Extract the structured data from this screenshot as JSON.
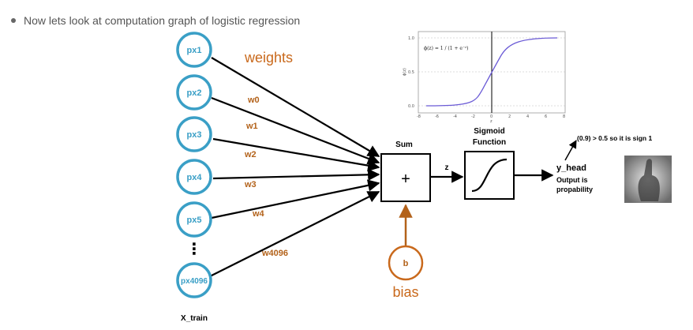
{
  "intro_text": "Now lets look at computation graph of logistic regression",
  "inputs": [
    {
      "label": "px1",
      "weight": ""
    },
    {
      "label": "px2",
      "weight": "w0"
    },
    {
      "label": "px3",
      "weight": "w1"
    },
    {
      "label": "px4",
      "weight": "w2"
    },
    {
      "label": "px5",
      "weight": "w3"
    },
    {
      "label": "px4096",
      "weight": "w4"
    }
  ],
  "last_weight": "w4096",
  "ellipsis": "⋮",
  "weights_title": "weights",
  "x_train_label": "X_train",
  "sum_label": "Sum",
  "plus_sign": "+",
  "z_label": "z",
  "sigmoid_label_1": "Sigmoid",
  "sigmoid_label_2": "Function",
  "bias_node": "b",
  "bias_label": "bias",
  "y_head_label": "y_head",
  "output_line_1": "Output is",
  "output_line_2": "propability",
  "decision_text": "(0.9) > 0.5 so it is sign 1",
  "plot": {
    "formula": "ϕ(z) = 1 / (1 + e⁻ᶻ)",
    "y_ticks": [
      "1.0",
      "0.5",
      "0.0"
    ],
    "x_ticks": [
      "-8",
      "-6",
      "-4",
      "-2",
      "0",
      "2",
      "4",
      "6",
      "8"
    ],
    "ylabel": "ϕ(z)",
    "xlabel": "z"
  },
  "colors": {
    "node": "#3a9fc6",
    "weight": "#b3621a",
    "bias": "#c9691c",
    "curve": "#6b5bd6"
  }
}
